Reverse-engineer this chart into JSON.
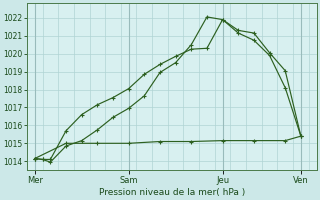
{
  "background_color": "#cce8e8",
  "plot_bg_color": "#d8f0f0",
  "grid_color": "#b0d4d4",
  "grid_color_major": "#99bbbb",
  "line_color": "#2d6020",
  "title": "Pression niveau de la mer( hPa )",
  "ylim": [
    1013.5,
    1022.8
  ],
  "yticks": [
    1014,
    1015,
    1016,
    1017,
    1018,
    1019,
    1020,
    1021,
    1022
  ],
  "xtick_labels": [
    "| Mer",
    "Sam",
    "Jeu",
    "| Ven"
  ],
  "xtick_positions": [
    0,
    6,
    12,
    17
  ],
  "series1_x": [
    0,
    0.5,
    1,
    2,
    3,
    4,
    5,
    6,
    7,
    8,
    9,
    10,
    11,
    12,
    13,
    14,
    15,
    16,
    17
  ],
  "series1_y": [
    1014.15,
    1014.1,
    1014.1,
    1015.7,
    1016.6,
    1017.15,
    1017.55,
    1018.05,
    1018.85,
    1019.4,
    1019.85,
    1020.25,
    1020.3,
    1021.9,
    1021.15,
    1020.75,
    1019.9,
    1018.1,
    1015.4
  ],
  "series2_x": [
    0,
    0.5,
    1,
    2,
    3,
    4,
    5,
    6,
    7,
    8,
    9,
    10,
    11,
    12,
    13,
    14,
    15,
    16,
    17
  ],
  "series2_y": [
    1014.15,
    1014.1,
    1013.95,
    1014.85,
    1015.15,
    1015.75,
    1016.45,
    1016.95,
    1017.65,
    1018.95,
    1019.5,
    1020.5,
    1022.05,
    1021.9,
    1021.3,
    1021.15,
    1020.05,
    1019.05,
    1015.4
  ],
  "series3_x": [
    0,
    2,
    4,
    6,
    8,
    10,
    12,
    14,
    16,
    17
  ],
  "series3_y": [
    1014.15,
    1015.0,
    1015.0,
    1015.0,
    1015.1,
    1015.1,
    1015.15,
    1015.15,
    1015.15,
    1015.4
  ],
  "figsize": [
    3.2,
    2.0
  ],
  "dpi": 100
}
